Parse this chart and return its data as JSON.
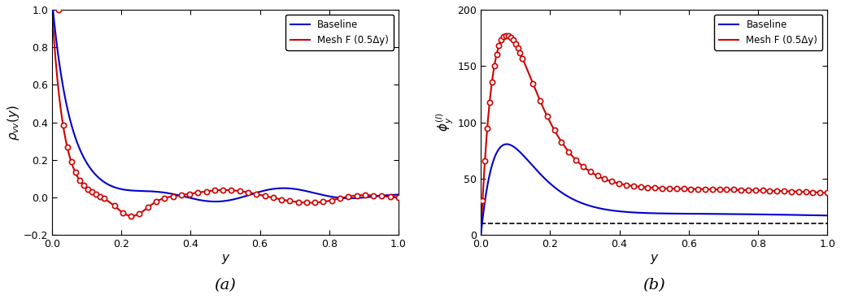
{
  "fig_width": 10.34,
  "fig_height": 3.68,
  "dpi": 100,
  "panel_a": {
    "xlabel": "y",
    "label_a": "(a)",
    "xlim": [
      0,
      1
    ],
    "ylim": [
      -0.2,
      1.0
    ],
    "yticks": [
      -0.2,
      0.0,
      0.2,
      0.4,
      0.6,
      0.8,
      1.0
    ],
    "xticks": [
      0.0,
      0.2,
      0.4,
      0.6,
      0.8,
      1.0
    ]
  },
  "panel_b": {
    "xlabel": "y",
    "label_b": "(b)",
    "xlim": [
      0,
      1
    ],
    "ylim": [
      0,
      200
    ],
    "yticks": [
      0,
      50,
      100,
      150,
      200
    ],
    "xticks": [
      0.0,
      0.2,
      0.4,
      0.6,
      0.8,
      1.0
    ],
    "dashed_line_y": 10
  },
  "baseline_color": "#0000cc",
  "mesh_f_color": "#cc0000",
  "legend_baseline": "Baseline",
  "legend_mesh_f": "Mesh F (0.5Δy)"
}
